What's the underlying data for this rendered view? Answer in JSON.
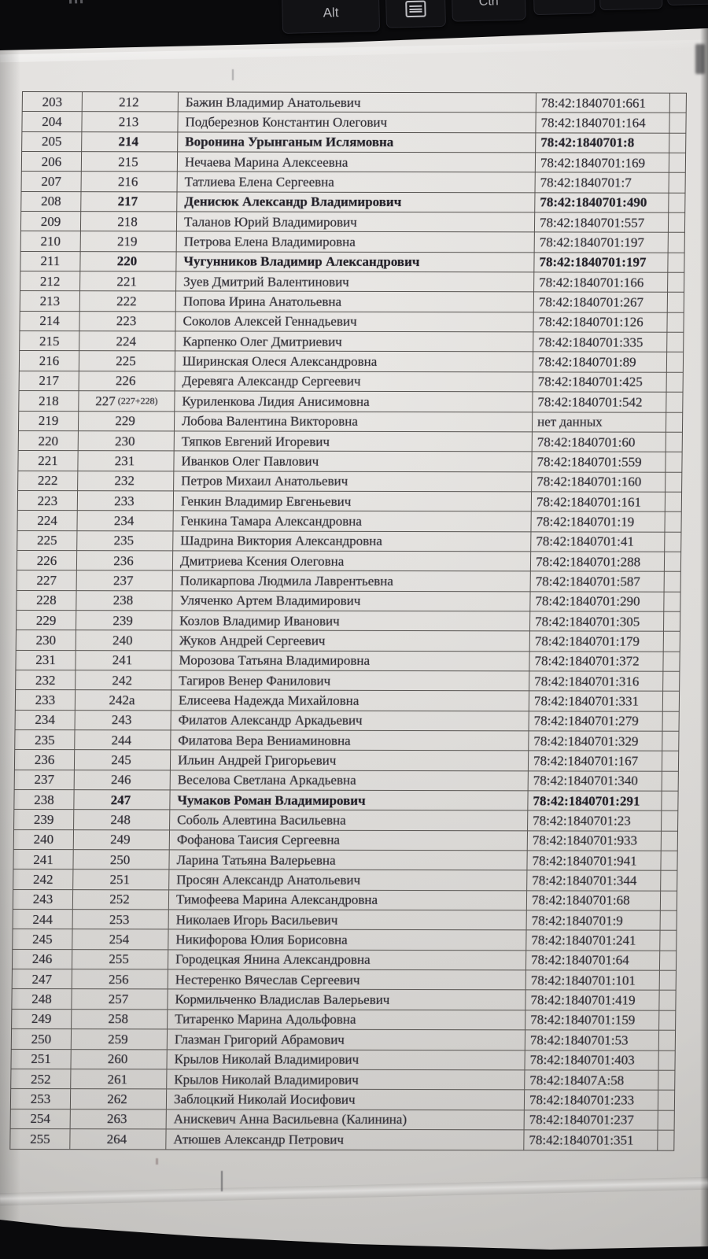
{
  "keyboard": {
    "alt": "Alt",
    "ctrl": "Ctrl",
    "arrow_left": "←",
    "arrow_down": "↓",
    "arrow_right": "→"
  },
  "document": {
    "rows": [
      {
        "n": "203",
        "plot": "212",
        "plot_note": "",
        "name": "Бажин Владимир Анатольевич",
        "cad": "78:42:1840701:661",
        "bold": false
      },
      {
        "n": "204",
        "plot": "213",
        "plot_note": "",
        "name": "Подберезнов Константин Олегович",
        "cad": "78:42:1840701:164",
        "bold": false
      },
      {
        "n": "205",
        "plot": "214",
        "plot_note": "",
        "name": "Воронина Урынганым Ислямовна",
        "cad": "78:42:1840701:8",
        "bold": true
      },
      {
        "n": "206",
        "plot": "215",
        "plot_note": "",
        "name": "Нечаева Марина Алексеевна",
        "cad": "78:42:1840701:169",
        "bold": false
      },
      {
        "n": "207",
        "plot": "216",
        "plot_note": "",
        "name": "Татлиева Елена Сергеевна",
        "cad": "78:42:1840701:7",
        "bold": false
      },
      {
        "n": "208",
        "plot": "217",
        "plot_note": "",
        "name": "Денисюк Александр Владимирович",
        "cad": "78:42:1840701:490",
        "bold": true
      },
      {
        "n": "209",
        "plot": "218",
        "plot_note": "",
        "name": "Таланов Юрий Владимирович",
        "cad": "78:42:1840701:557",
        "bold": false
      },
      {
        "n": "210",
        "plot": "219",
        "plot_note": "",
        "name": "Петрова Елена Владимировна",
        "cad": "78:42:1840701:197",
        "bold": false
      },
      {
        "n": "211",
        "plot": "220",
        "plot_note": "",
        "name": "Чугунников Владимир Александрович",
        "cad": "78:42:1840701:197",
        "bold": true
      },
      {
        "n": "212",
        "plot": "221",
        "plot_note": "",
        "name": "Зуев Дмитрий Валентинович",
        "cad": "78:42:1840701:166",
        "bold": false
      },
      {
        "n": "213",
        "plot": "222",
        "plot_note": "",
        "name": "Попова Ирина Анатольевна",
        "cad": "78:42:1840701:267",
        "bold": false
      },
      {
        "n": "214",
        "plot": "223",
        "plot_note": "",
        "name": "Соколов Алексей Геннадьевич",
        "cad": "78:42:1840701:126",
        "bold": false
      },
      {
        "n": "215",
        "plot": "224",
        "plot_note": "",
        "name": "Карпенко Олег Дмитриевич",
        "cad": "78:42:1840701:335",
        "bold": false
      },
      {
        "n": "216",
        "plot": "225",
        "plot_note": "",
        "name": "Ширинская Олеся Александровна",
        "cad": "78:42:1840701:89",
        "bold": false
      },
      {
        "n": "217",
        "plot": "226",
        "plot_note": "",
        "name": "Деревяга Александр Сергеевич",
        "cad": "78:42:1840701:425",
        "bold": false
      },
      {
        "n": "218",
        "plot": "227",
        "plot_note": "(227+228)",
        "name": "Куриленкова Лидия Анисимовна",
        "cad": "78:42:1840701:542",
        "bold": false
      },
      {
        "n": "219",
        "plot": "229",
        "plot_note": "",
        "name": "Лобова Валентина Викторовна",
        "cad": "нет данных",
        "bold": false
      },
      {
        "n": "220",
        "plot": "230",
        "plot_note": "",
        "name": "Тяпков Евгений Игоревич",
        "cad": "78:42:1840701:60",
        "bold": false
      },
      {
        "n": "221",
        "plot": "231",
        "plot_note": "",
        "name": "Иванков Олег Павлович",
        "cad": "78:42:1840701:559",
        "bold": false
      },
      {
        "n": "222",
        "plot": "232",
        "plot_note": "",
        "name": "Петров Михаил Анатольевич",
        "cad": "78:42:1840701:160",
        "bold": false
      },
      {
        "n": "223",
        "plot": "233",
        "plot_note": "",
        "name": "Генкин Владимир Евгеньевич",
        "cad": "78:42:1840701:161",
        "bold": false
      },
      {
        "n": "224",
        "plot": "234",
        "plot_note": "",
        "name": "Генкина Тамара Александровна",
        "cad": "78:42:1840701:19",
        "bold": false
      },
      {
        "n": "225",
        "plot": "235",
        "plot_note": "",
        "name": "Шадрина Виктория  Александровна",
        "cad": "78:42:1840701:41",
        "bold": false
      },
      {
        "n": "226",
        "plot": "236",
        "plot_note": "",
        "name": "Дмитриева Ксения Олеговна",
        "cad": "78:42:1840701:288",
        "bold": false
      },
      {
        "n": "227",
        "plot": "237",
        "plot_note": "",
        "name": "Поликарпова Людмила Лаврентьевна",
        "cad": "78:42:1840701:587",
        "bold": false
      },
      {
        "n": "228",
        "plot": "238",
        "plot_note": "",
        "name": "Уляченко Артем Владимирович",
        "cad": "78:42:1840701:290",
        "bold": false
      },
      {
        "n": "229",
        "plot": "239",
        "plot_note": "",
        "name": "Козлов Владимир Иванович",
        "cad": "78:42:1840701:305",
        "bold": false
      },
      {
        "n": "230",
        "plot": "240",
        "plot_note": "",
        "name": "Жуков Андрей Сергеевич",
        "cad": "78:42:1840701:179",
        "bold": false
      },
      {
        "n": "231",
        "plot": "241",
        "plot_note": "",
        "name": "Морозова Татьяна Владимировна",
        "cad": "78:42:1840701:372",
        "bold": false
      },
      {
        "n": "232",
        "plot": "242",
        "plot_note": "",
        "name": "Тагиров Венер Фанилович",
        "cad": "78:42:1840701:316",
        "bold": false
      },
      {
        "n": "233",
        "plot": "242а",
        "plot_note": "",
        "name": "Елисеева Надежда Михайловна",
        "cad": "78:42:1840701:331",
        "bold": false
      },
      {
        "n": "234",
        "plot": "243",
        "plot_note": "",
        "name": "Филатов Александр Аркадьевич",
        "cad": "78:42:1840701:279",
        "bold": false
      },
      {
        "n": "235",
        "plot": "244",
        "plot_note": "",
        "name": "Филатова Вера Вениаминовна",
        "cad": "78:42:1840701:329",
        "bold": false
      },
      {
        "n": "236",
        "plot": "245",
        "plot_note": "",
        "name": "Ильин Андрей Григорьевич",
        "cad": "78:42:1840701:167",
        "bold": false
      },
      {
        "n": "237",
        "plot": "246",
        "plot_note": "",
        "name": "Веселова Светлана Аркадьевна",
        "cad": "78:42:1840701:340",
        "bold": false
      },
      {
        "n": "238",
        "plot": "247",
        "plot_note": "",
        "name": "Чумаков Роман Владимирович",
        "cad": "78:42:1840701:291",
        "bold": true
      },
      {
        "n": "239",
        "plot": "248",
        "plot_note": "",
        "name": "Соболь Алевтина Васильевна",
        "cad": "78:42:1840701:23",
        "bold": false
      },
      {
        "n": "240",
        "plot": "249",
        "plot_note": "",
        "name": "Фофанова Таисия Сергеевна",
        "cad": "78:42:1840701:933",
        "bold": false
      },
      {
        "n": "241",
        "plot": "250",
        "plot_note": "",
        "name": "Ларина Татьяна Валерьевна",
        "cad": "78:42:1840701:941",
        "bold": false
      },
      {
        "n": "242",
        "plot": "251",
        "plot_note": "",
        "name": "Просян Александр Анатольевич",
        "cad": "78:42:1840701:344",
        "bold": false
      },
      {
        "n": "243",
        "plot": "252",
        "plot_note": "",
        "name": "Тимофеева Марина Александровна",
        "cad": "78:42:1840701:68",
        "bold": false
      },
      {
        "n": "244",
        "plot": "253",
        "plot_note": "",
        "name": "Николаев Игорь Васильевич",
        "cad": "78:42:1840701:9",
        "bold": false
      },
      {
        "n": "245",
        "plot": "254",
        "plot_note": "",
        "name": "Никифорова Юлия Борисовна",
        "cad": "78:42:1840701:241",
        "bold": false
      },
      {
        "n": "246",
        "plot": "255",
        "plot_note": "",
        "name": "Городецкая Янина Александровна",
        "cad": "78:42:1840701:64",
        "bold": false
      },
      {
        "n": "247",
        "plot": "256",
        "plot_note": "",
        "name": "Нестеренко Вячеслав Сергеевич",
        "cad": "78:42:1840701:101",
        "bold": false
      },
      {
        "n": "248",
        "plot": "257",
        "plot_note": "",
        "name": "Кормильченко Владислав Валерьевич",
        "cad": "78:42:1840701:419",
        "bold": false
      },
      {
        "n": "249",
        "plot": "258",
        "plot_note": "",
        "name": "Титаренко Марина Адольфовна",
        "cad": "78:42:1840701:159",
        "bold": false
      },
      {
        "n": "250",
        "plot": "259",
        "plot_note": "",
        "name": "Глазман Григорий Абрамович",
        "cad": "78:42:1840701:53",
        "bold": false
      },
      {
        "n": "251",
        "plot": "260",
        "plot_note": "",
        "name": "Крылов Николай Владимирович",
        "cad": "78:42:1840701:403",
        "bold": false
      },
      {
        "n": "252",
        "plot": "261",
        "plot_note": "",
        "name": "Крылов Николай Владимирович",
        "cad": "78:42:18407А:58",
        "bold": false
      },
      {
        "n": "253",
        "plot": "262",
        "plot_note": "",
        "name": "Заблоцкий Николай Иосифович",
        "cad": "78:42:1840701:233",
        "bold": false
      },
      {
        "n": "254",
        "plot": "263",
        "plot_note": "",
        "name": "Анискевич Анна Васильевна  (Калинина)",
        "cad": "78:42:1840701:237",
        "bold": false
      },
      {
        "n": "255",
        "plot": "264",
        "plot_note": "",
        "name": "Атюшев Александр Петрович",
        "cad": "78:42:1840701:351",
        "bold": false
      }
    ]
  },
  "colors": {
    "background": "#0a0a0c",
    "paper": "#e3e1de",
    "table_border": "#565350",
    "ink": "#312f36"
  }
}
